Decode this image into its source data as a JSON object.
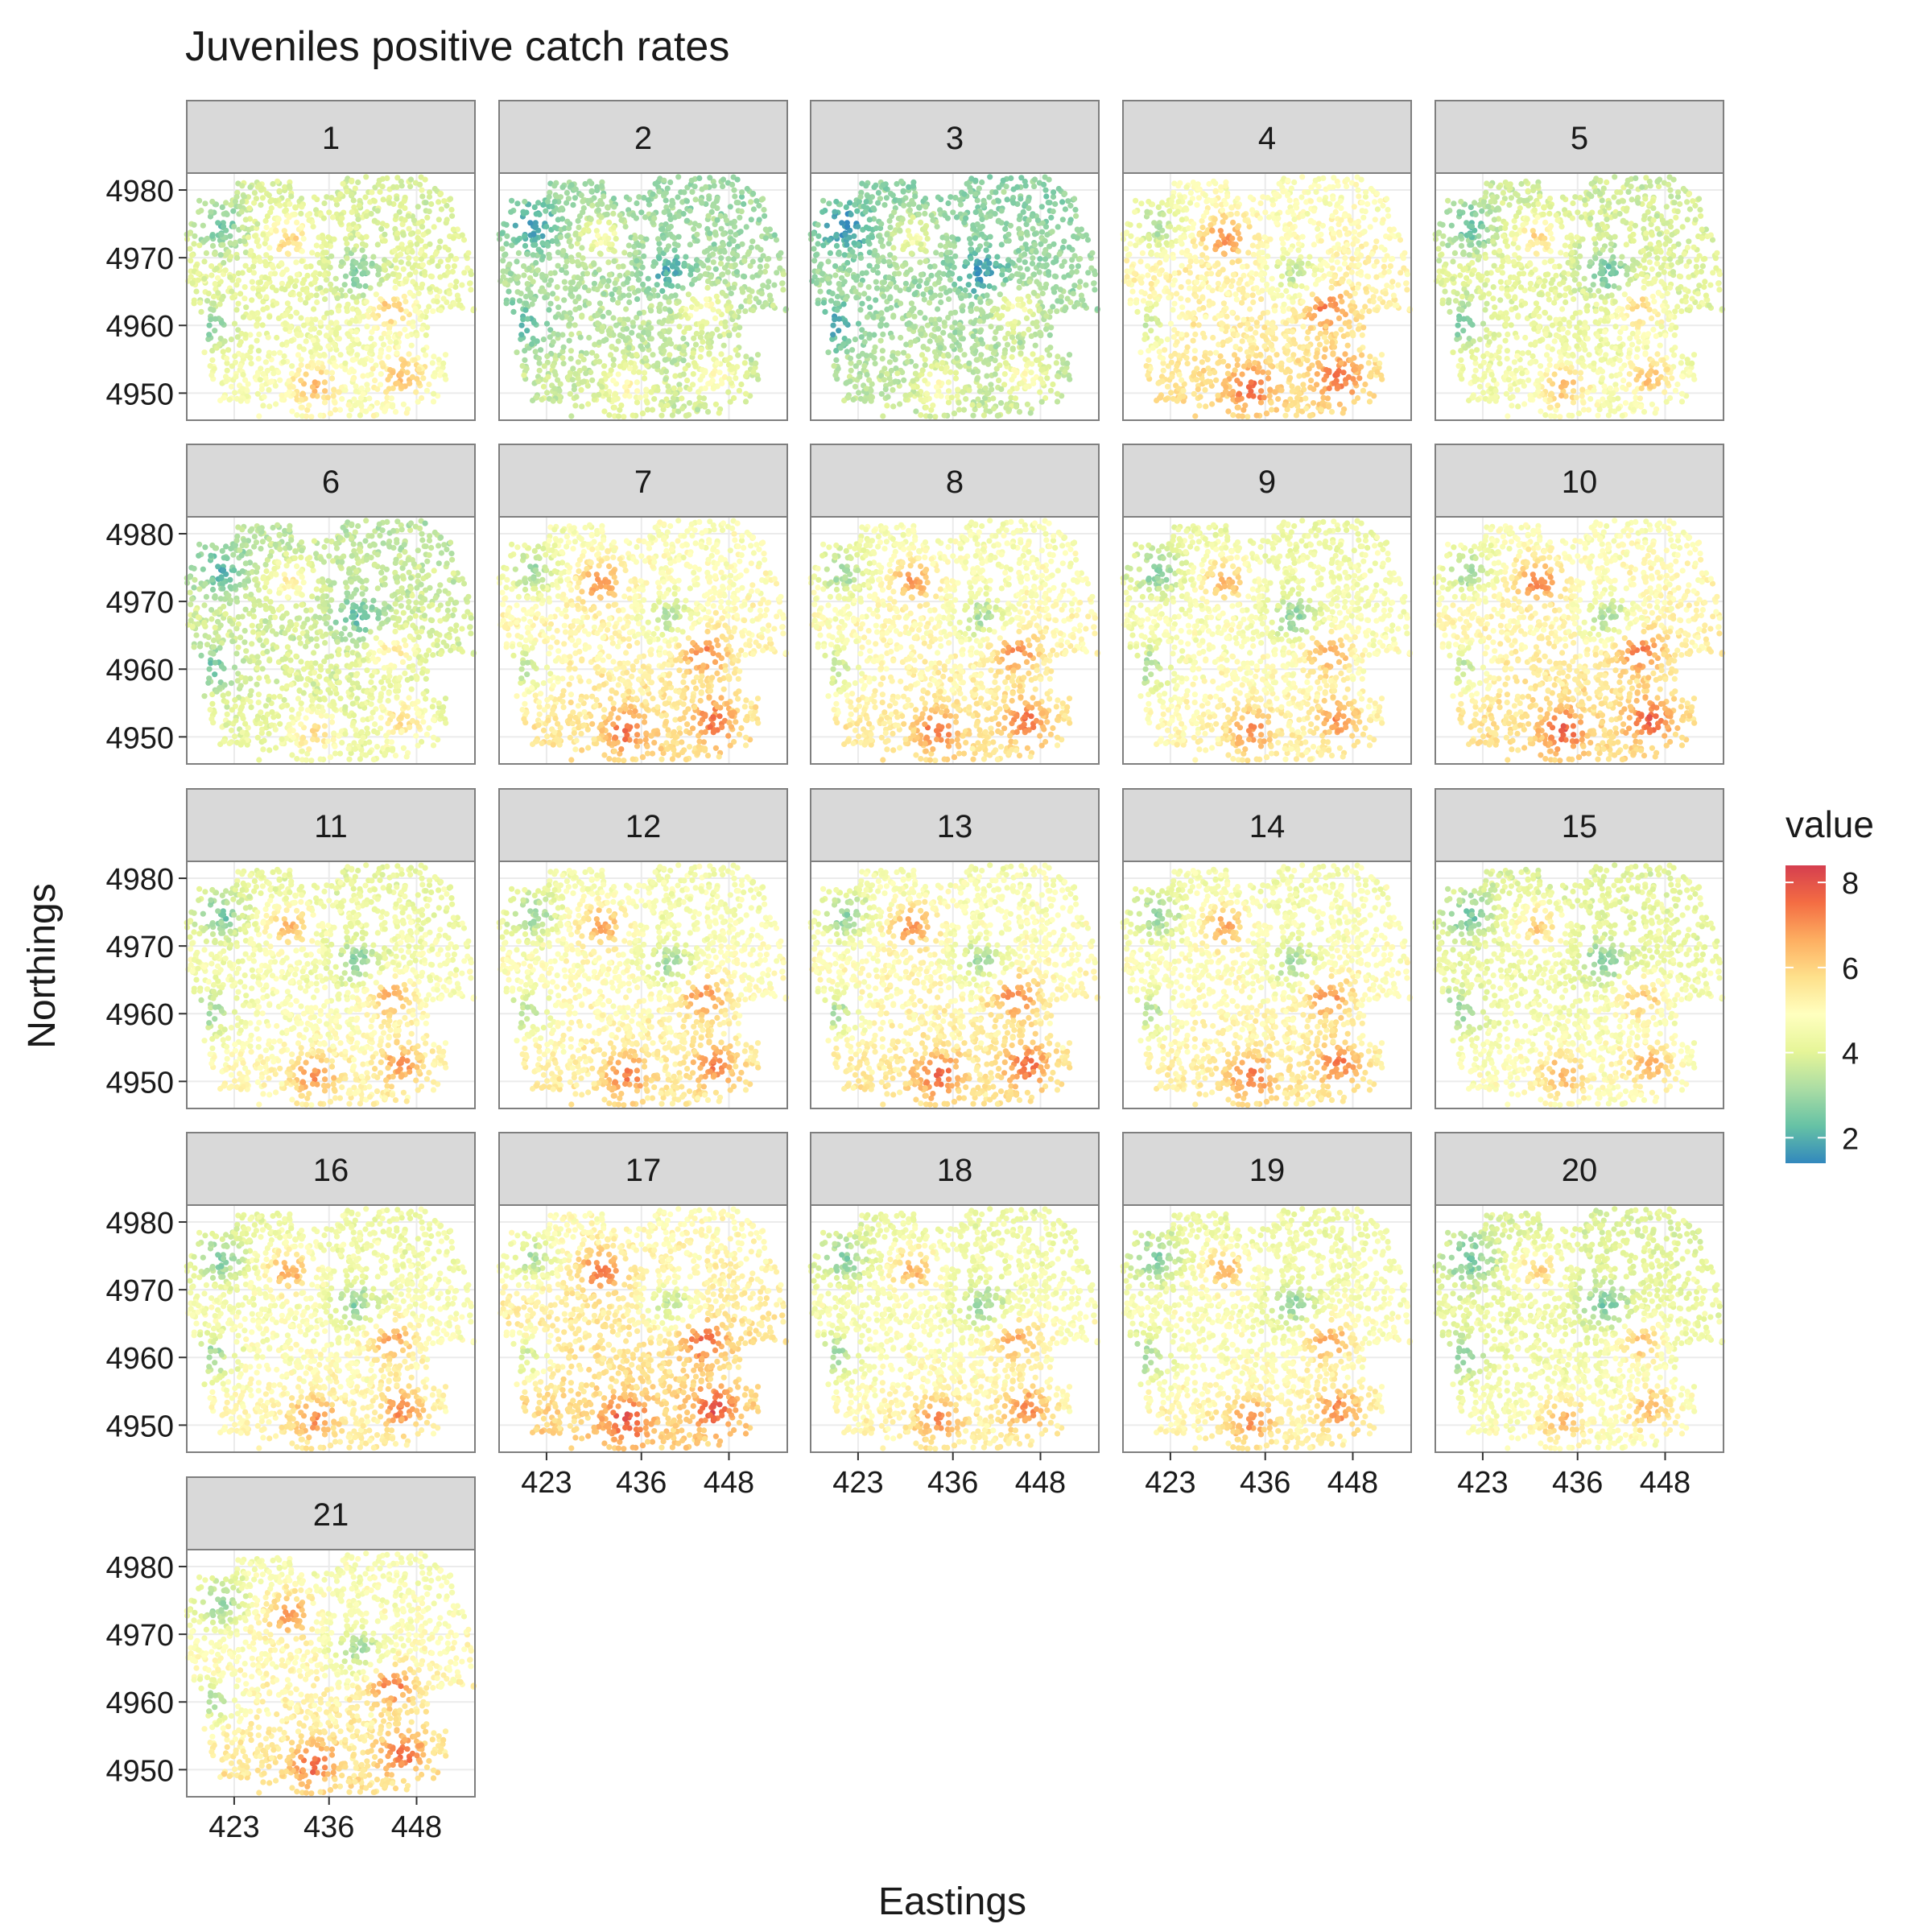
{
  "chart_data": {
    "type": "scatter",
    "title": "Juveniles positive catch rates",
    "xlabel": "Eastings",
    "ylabel": "Northings",
    "facets": [
      "1",
      "2",
      "3",
      "4",
      "5",
      "6",
      "7",
      "8",
      "9",
      "10",
      "11",
      "12",
      "13",
      "14",
      "15",
      "16",
      "17",
      "18",
      "19",
      "20",
      "21"
    ],
    "facet_layout": {
      "ncol": 5,
      "nrow": 5
    },
    "x_ticks": [
      423,
      436,
      448
    ],
    "y_ticks": [
      4950,
      4960,
      4970,
      4980
    ],
    "xlim": [
      416.5,
      456
    ],
    "ylim": [
      4946,
      4982.5
    ],
    "legend": {
      "title": "value",
      "position": "right",
      "breaks": [
        2,
        4,
        6,
        8
      ],
      "range": [
        1.4,
        8.4
      ],
      "palette": "Spectral (reversed)",
      "colors": [
        "#3288bd",
        "#66c2a5",
        "#abdda4",
        "#e6f598",
        "#ffffbf",
        "#fee08b",
        "#fdae61",
        "#f46d43",
        "#d53e4f"
      ]
    },
    "hotspots_note_values": {
      "cold": [
        {
          "x": 440,
          "y": 4967.5
        },
        {
          "x": 421,
          "y": 4974.5
        },
        {
          "x": 420,
          "y": 4960
        }
      ],
      "warm": [
        {
          "x": 430.5,
          "y": 4973
        },
        {
          "x": 444.5,
          "y": 4962.5
        },
        {
          "x": 446,
          "y": 4952.5
        },
        {
          "x": 434,
          "y": 4951
        }
      ]
    },
    "panel_mean_value": [
      4.1,
      3.2,
      3.0,
      5.1,
      4.0,
      3.7,
      5.0,
      4.9,
      4.6,
      5.1,
      4.5,
      4.8,
      4.9,
      4.8,
      4.3,
      4.6,
      5.3,
      4.6,
      4.6,
      4.2,
      4.9
    ],
    "panel_spread": [
      1.3,
      1.1,
      1.1,
      1.4,
      1.3,
      1.2,
      1.4,
      1.4,
      1.4,
      1.5,
      1.4,
      1.4,
      1.5,
      1.4,
      1.3,
      1.4,
      1.5,
      1.4,
      1.4,
      1.3,
      1.5
    ],
    "grid": true,
    "point_count_per_panel": 1500
  }
}
